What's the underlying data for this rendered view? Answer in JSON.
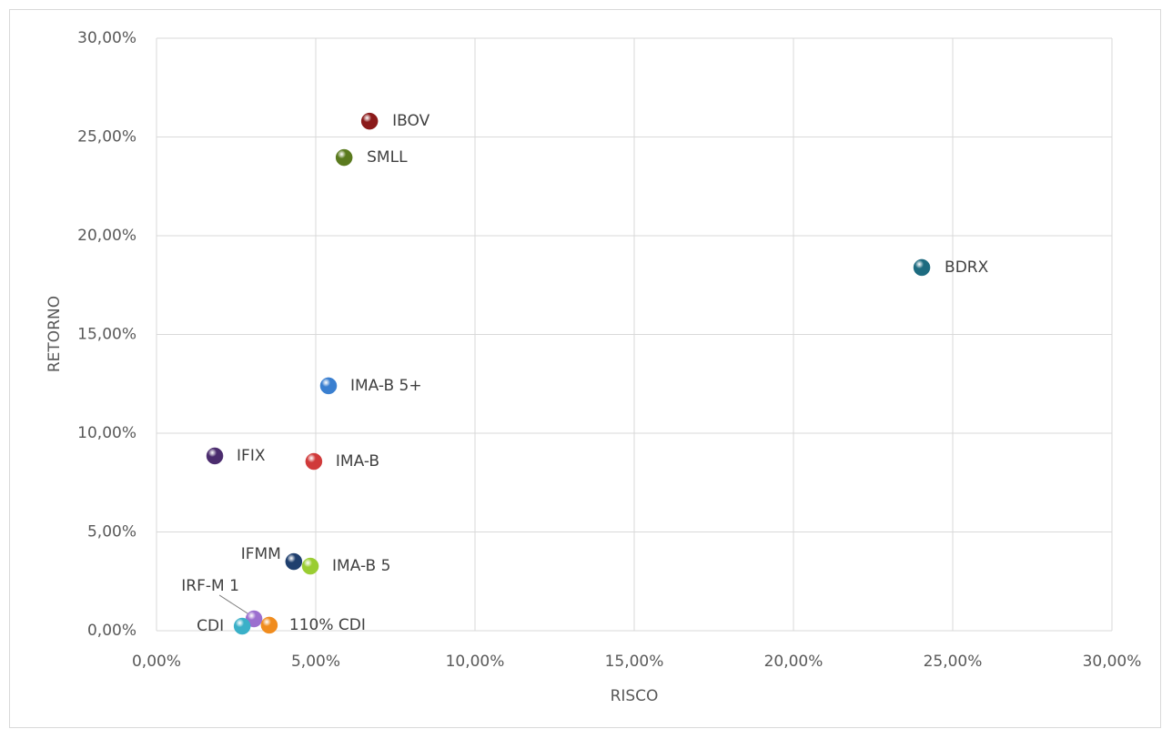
{
  "chart_data": {
    "type": "scatter",
    "x_label": "RISCO",
    "y_label": "RETORNO",
    "xlim": [
      0,
      30
    ],
    "ylim": [
      0,
      30
    ],
    "xticks": [
      {
        "value": 0,
        "label": "0,00%"
      },
      {
        "value": 5,
        "label": "5,00%"
      },
      {
        "value": 10,
        "label": "10,00%"
      },
      {
        "value": 15,
        "label": "15,00%"
      },
      {
        "value": 20,
        "label": "20,00%"
      },
      {
        "value": 25,
        "label": "25,00%"
      },
      {
        "value": 30,
        "label": "30,00%"
      }
    ],
    "yticks": [
      {
        "value": 0,
        "label": "0,00%"
      },
      {
        "value": 5,
        "label": "5,00%"
      },
      {
        "value": 10,
        "label": "10,00%"
      },
      {
        "value": 15,
        "label": "15,00%"
      },
      {
        "value": 20,
        "label": "20,00%"
      },
      {
        "value": 25,
        "label": "25,00%"
      },
      {
        "value": 30,
        "label": "30,00%"
      }
    ],
    "grid": true,
    "series": [
      {
        "name": "IBOV",
        "color": "#8b1a1a",
        "x": [
          6.69
        ],
        "y": [
          25.8
        ]
      },
      {
        "name": "SMLL",
        "color": "#5a7a1e",
        "x": [
          5.89
        ],
        "y": [
          23.96
        ]
      },
      {
        "name": "BDRX",
        "color": "#1d6b80",
        "x": [
          24.03
        ],
        "y": [
          18.39
        ]
      },
      {
        "name": "IMA-B 5+",
        "color": "#3a7fd0",
        "x": [
          5.4
        ],
        "y": [
          12.4
        ]
      },
      {
        "name": "IFIX",
        "color": "#4b2c6e",
        "x": [
          1.83
        ],
        "y": [
          8.85
        ]
      },
      {
        "name": "IMA-B",
        "color": "#d03a3a",
        "x": [
          4.94
        ],
        "y": [
          8.57
        ]
      },
      {
        "name": "IFMM",
        "color": "#1f3f6e",
        "x": [
          4.31
        ],
        "y": [
          3.5
        ]
      },
      {
        "name": "IMA-B 5",
        "color": "#9acd32",
        "x": [
          4.83
        ],
        "y": [
          3.27
        ]
      },
      {
        "name": "IRF-M 1",
        "color": "#9b6fcf",
        "x": [
          3.06
        ],
        "y": [
          0.6
        ]
      },
      {
        "name": "CDI",
        "color": "#3ab0c8",
        "x": [
          2.69
        ],
        "y": [
          0.23
        ]
      },
      {
        "name": "110% CDI",
        "color": "#f08c1e",
        "x": [
          3.54
        ],
        "y": [
          0.28
        ]
      }
    ]
  }
}
